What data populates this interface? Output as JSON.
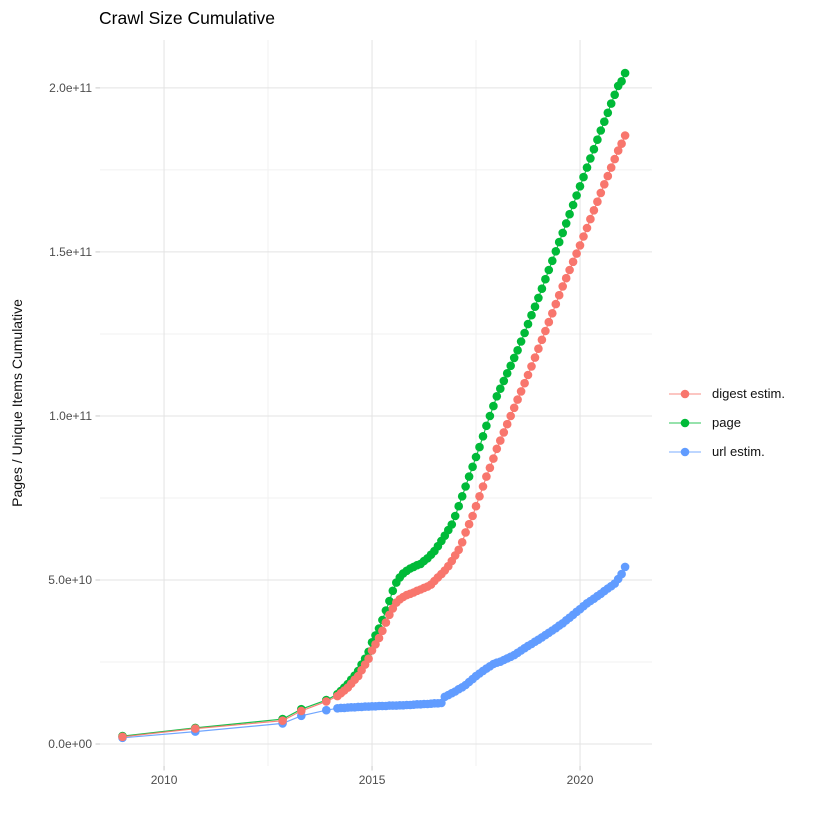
{
  "chart_data": {
    "type": "scatter",
    "title": "Crawl Size Cumulative",
    "subtitle": "",
    "xlabel": "",
    "ylabel": "Pages / Unique Items Cumulative",
    "unit": "items, stored in billions (1e9)",
    "grid": true,
    "legend_position": "right-center",
    "xlim": [
      2008.46,
      2021.73
    ],
    "ylim": [
      -6.7,
      214.6
    ],
    "x_ticks": [
      {
        "value": 2010,
        "label": "2010"
      },
      {
        "value": 2015,
        "label": "2015"
      },
      {
        "value": 2020,
        "label": "2020"
      }
    ],
    "x_minor_ticks": [
      2012.5,
      2017.5
    ],
    "y_ticks": [
      {
        "value": 0,
        "label": "0.0e+00"
      },
      {
        "value": 50,
        "label": "5.0e+10"
      },
      {
        "value": 100,
        "label": "1.0e+11"
      },
      {
        "value": 150,
        "label": "1.5e+11"
      },
      {
        "value": 200,
        "label": "2.0e+11"
      }
    ],
    "y_minor_ticks": [
      25,
      75,
      125,
      175
    ],
    "x": [
      2009.0,
      2010.75,
      2012.85,
      2013.3,
      2013.9,
      2014.167,
      2014.25,
      2014.333,
      2014.417,
      2014.5,
      2014.583,
      2014.667,
      2014.75,
      2014.833,
      2014.917,
      2015.0,
      2015.083,
      2015.167,
      2015.25,
      2015.333,
      2015.417,
      2015.5,
      2015.583,
      2015.667,
      2015.75,
      2015.833,
      2015.917,
      2016.0,
      2016.083,
      2016.167,
      2016.25,
      2016.333,
      2016.417,
      2016.5,
      2016.583,
      2016.667,
      2016.75,
      2016.833,
      2016.917,
      2017.0,
      2017.083,
      2017.167,
      2017.25,
      2017.333,
      2017.417,
      2017.5,
      2017.583,
      2017.667,
      2017.75,
      2017.833,
      2017.917,
      2018.0,
      2018.083,
      2018.167,
      2018.25,
      2018.333,
      2018.417,
      2018.5,
      2018.583,
      2018.667,
      2018.75,
      2018.833,
      2018.917,
      2019.0,
      2019.083,
      2019.167,
      2019.25,
      2019.333,
      2019.417,
      2019.5,
      2019.583,
      2019.667,
      2019.75,
      2019.833,
      2019.917,
      2020.0,
      2020.083,
      2020.167,
      2020.25,
      2020.333,
      2020.417,
      2020.5,
      2020.583,
      2020.667,
      2020.75,
      2020.833,
      2020.917,
      2021.0,
      2021.083
    ],
    "series": [
      {
        "name": "digest estim.",
        "color": "#F8766D",
        "values": [
          2.2,
          4.7,
          7.1,
          10.1,
          13.0,
          14.6,
          15.5,
          16.3,
          17.2,
          18.4,
          19.6,
          20.7,
          22.5,
          24.2,
          26.0,
          28.5,
          30.4,
          32.3,
          34.5,
          37.0,
          39.4,
          41.3,
          43.1,
          44.1,
          44.8,
          45.4,
          45.8,
          46.2,
          46.7,
          47.1,
          47.6,
          48.0,
          48.6,
          49.7,
          50.8,
          51.8,
          52.9,
          54.2,
          55.8,
          57.5,
          59.2,
          61.5,
          64.5,
          67.0,
          69.5,
          72.5,
          75.5,
          78.5,
          81.5,
          84.2,
          87.0,
          90.0,
          92.5,
          95.0,
          97.5,
          100.0,
          102.5,
          105.0,
          107.5,
          110.0,
          112.5,
          115.1,
          117.8,
          120.5,
          123.2,
          125.9,
          128.6,
          131.3,
          134.1,
          136.8,
          139.5,
          142.0,
          144.5,
          147.0,
          149.5,
          152.0,
          154.7,
          157.3,
          160.0,
          162.7,
          165.3,
          168.0,
          170.6,
          173.1,
          175.7,
          178.3,
          180.9,
          183.0,
          185.5
        ]
      },
      {
        "name": "page",
        "color": "#00BA38",
        "values": [
          2.4,
          4.9,
          7.6,
          10.6,
          13.4,
          15.2,
          16.2,
          17.2,
          18.3,
          19.6,
          20.9,
          22.3,
          24.2,
          26.0,
          28.1,
          31.0,
          33.1,
          35.2,
          37.8,
          40.7,
          43.6,
          46.7,
          49.2,
          50.8,
          52.0,
          52.8,
          53.5,
          54.0,
          54.5,
          54.9,
          55.8,
          56.6,
          57.7,
          58.8,
          60.3,
          61.9,
          63.5,
          65.2,
          66.9,
          69.5,
          72.5,
          75.5,
          78.5,
          81.5,
          84.5,
          87.5,
          90.5,
          93.8,
          97.0,
          100.0,
          103.0,
          106.0,
          108.3,
          110.7,
          113.0,
          115.3,
          117.7,
          120.0,
          122.7,
          125.3,
          128.0,
          130.7,
          133.3,
          136.0,
          138.8,
          141.7,
          144.5,
          147.3,
          150.2,
          153.0,
          155.8,
          158.7,
          161.5,
          164.3,
          167.2,
          170.0,
          172.8,
          175.7,
          178.5,
          181.3,
          184.2,
          187.0,
          189.7,
          192.4,
          195.2,
          197.9,
          200.6,
          202.0,
          204.5
        ]
      },
      {
        "name": "url estim.",
        "color": "#619CFF",
        "values": [
          1.9,
          3.8,
          6.3,
          8.6,
          10.3,
          10.9,
          11.0,
          11.0,
          11.1,
          11.2,
          11.2,
          11.3,
          11.3,
          11.4,
          11.4,
          11.5,
          11.5,
          11.6,
          11.6,
          11.6,
          11.7,
          11.7,
          11.7,
          11.8,
          11.8,
          11.9,
          11.9,
          12.0,
          12.1,
          12.1,
          12.2,
          12.2,
          12.3,
          12.4,
          12.4,
          12.5,
          14.4,
          14.9,
          15.5,
          16.0,
          16.7,
          17.3,
          18.0,
          18.9,
          19.8,
          20.7,
          21.5,
          22.3,
          23.0,
          23.7,
          24.4,
          24.8,
          25.1,
          25.6,
          26.1,
          26.6,
          27.1,
          27.8,
          28.5,
          29.2,
          29.9,
          30.5,
          31.2,
          31.8,
          32.5,
          33.2,
          33.9,
          34.6,
          35.3,
          36.1,
          36.8,
          37.7,
          38.5,
          39.4,
          40.3,
          41.1,
          42.0,
          42.9,
          43.6,
          44.3,
          45.1,
          45.8,
          46.6,
          47.4,
          48.1,
          48.9,
          50.3,
          51.8,
          54.0
        ]
      }
    ],
    "draw_order": [
      "page",
      "url estim.",
      "digest estim."
    ]
  },
  "colors": {
    "background": "#FFFFFF",
    "grid_major": "#E3E3E3",
    "grid_minor": "#F1F1F1",
    "tick_mark": "#C8C8C8",
    "tick_label": "#4D4D4D",
    "title_text": "#000000",
    "digest_estim": "#F8766D",
    "page": "#00BA38",
    "url_estim": "#619CFF"
  }
}
